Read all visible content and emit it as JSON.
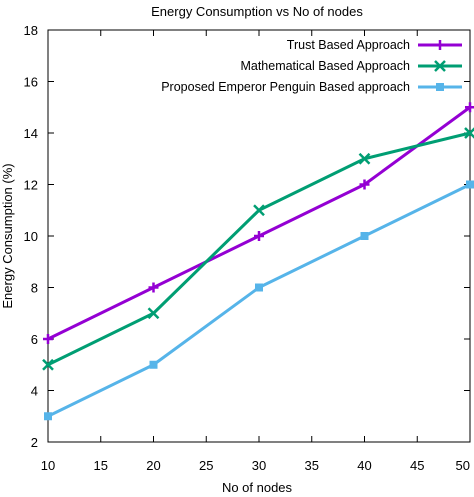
{
  "chart_data": {
    "type": "line",
    "title": "Energy Consumption vs No of nodes",
    "xlabel": "No of nodes",
    "ylabel": "Energy Consumption (%)",
    "xlim": [
      10,
      50
    ],
    "ylim": [
      2,
      18
    ],
    "xticks": [
      10,
      15,
      20,
      25,
      30,
      35,
      40,
      45,
      50
    ],
    "yticks": [
      2,
      4,
      6,
      8,
      10,
      12,
      14,
      16,
      18
    ],
    "grid": false,
    "legend_position": "top-right",
    "x": [
      10,
      20,
      30,
      40,
      50
    ],
    "series": [
      {
        "name": "Trust Based Approach",
        "color": "#9400d3",
        "marker": "plus",
        "values": [
          6,
          8,
          10,
          12,
          15
        ]
      },
      {
        "name": "Mathematical Based Approach",
        "color": "#009e73",
        "marker": "cross",
        "values": [
          5,
          7,
          11,
          13,
          14
        ]
      },
      {
        "name": "Proposed Emperor Penguin Based approach",
        "color": "#56b4e9",
        "marker": "square",
        "values": [
          3,
          5,
          8,
          10,
          12
        ]
      }
    ]
  }
}
